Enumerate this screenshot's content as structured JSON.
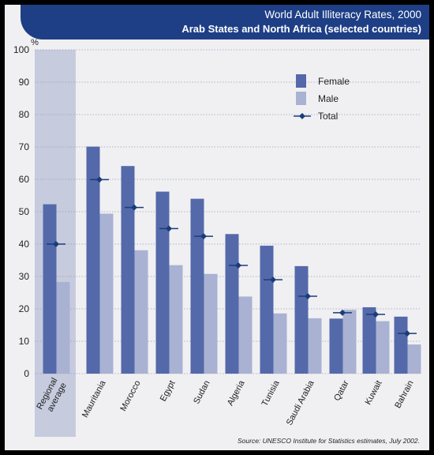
{
  "header": {
    "title": "World Adult Illiteracy Rates, 2000",
    "subtitle": "Arab States and North Africa (selected countries)"
  },
  "chart_data": {
    "type": "bar",
    "ylabel": "%",
    "ylim": [
      0,
      100
    ],
    "yticks": [
      0,
      10,
      20,
      30,
      40,
      50,
      60,
      70,
      80,
      90,
      100
    ],
    "grid": true,
    "legend_position": "top-right",
    "highlighted_category": "Regional average",
    "categories": [
      "Regional average",
      "Mauritania",
      "Morocco",
      "Egypt",
      "Sudan",
      "Algeria",
      "Tunisia",
      "Saudi Arabia",
      "Qatar",
      "Kuwait",
      "Bahrain"
    ],
    "series": [
      {
        "name": "Female",
        "kind": "bar",
        "color": "#5469a9",
        "values": [
          52.3,
          70.1,
          64.1,
          56.2,
          54.0,
          43.1,
          39.5,
          33.2,
          17.0,
          20.5,
          17.6
        ]
      },
      {
        "name": "Male",
        "kind": "bar",
        "color": "#a9b2d2",
        "values": [
          28.3,
          49.4,
          38.1,
          33.5,
          30.8,
          23.8,
          18.6,
          17.1,
          19.7,
          16.2,
          9.0
        ]
      },
      {
        "name": "Total",
        "kind": "marker",
        "color": "#1a3d7a",
        "values": [
          40.0,
          59.9,
          51.3,
          44.8,
          42.4,
          33.4,
          29.0,
          23.9,
          18.8,
          18.3,
          12.4
        ]
      }
    ]
  },
  "source_text": "Source: UNESCO Institute for Statistics estimates, July 2002."
}
